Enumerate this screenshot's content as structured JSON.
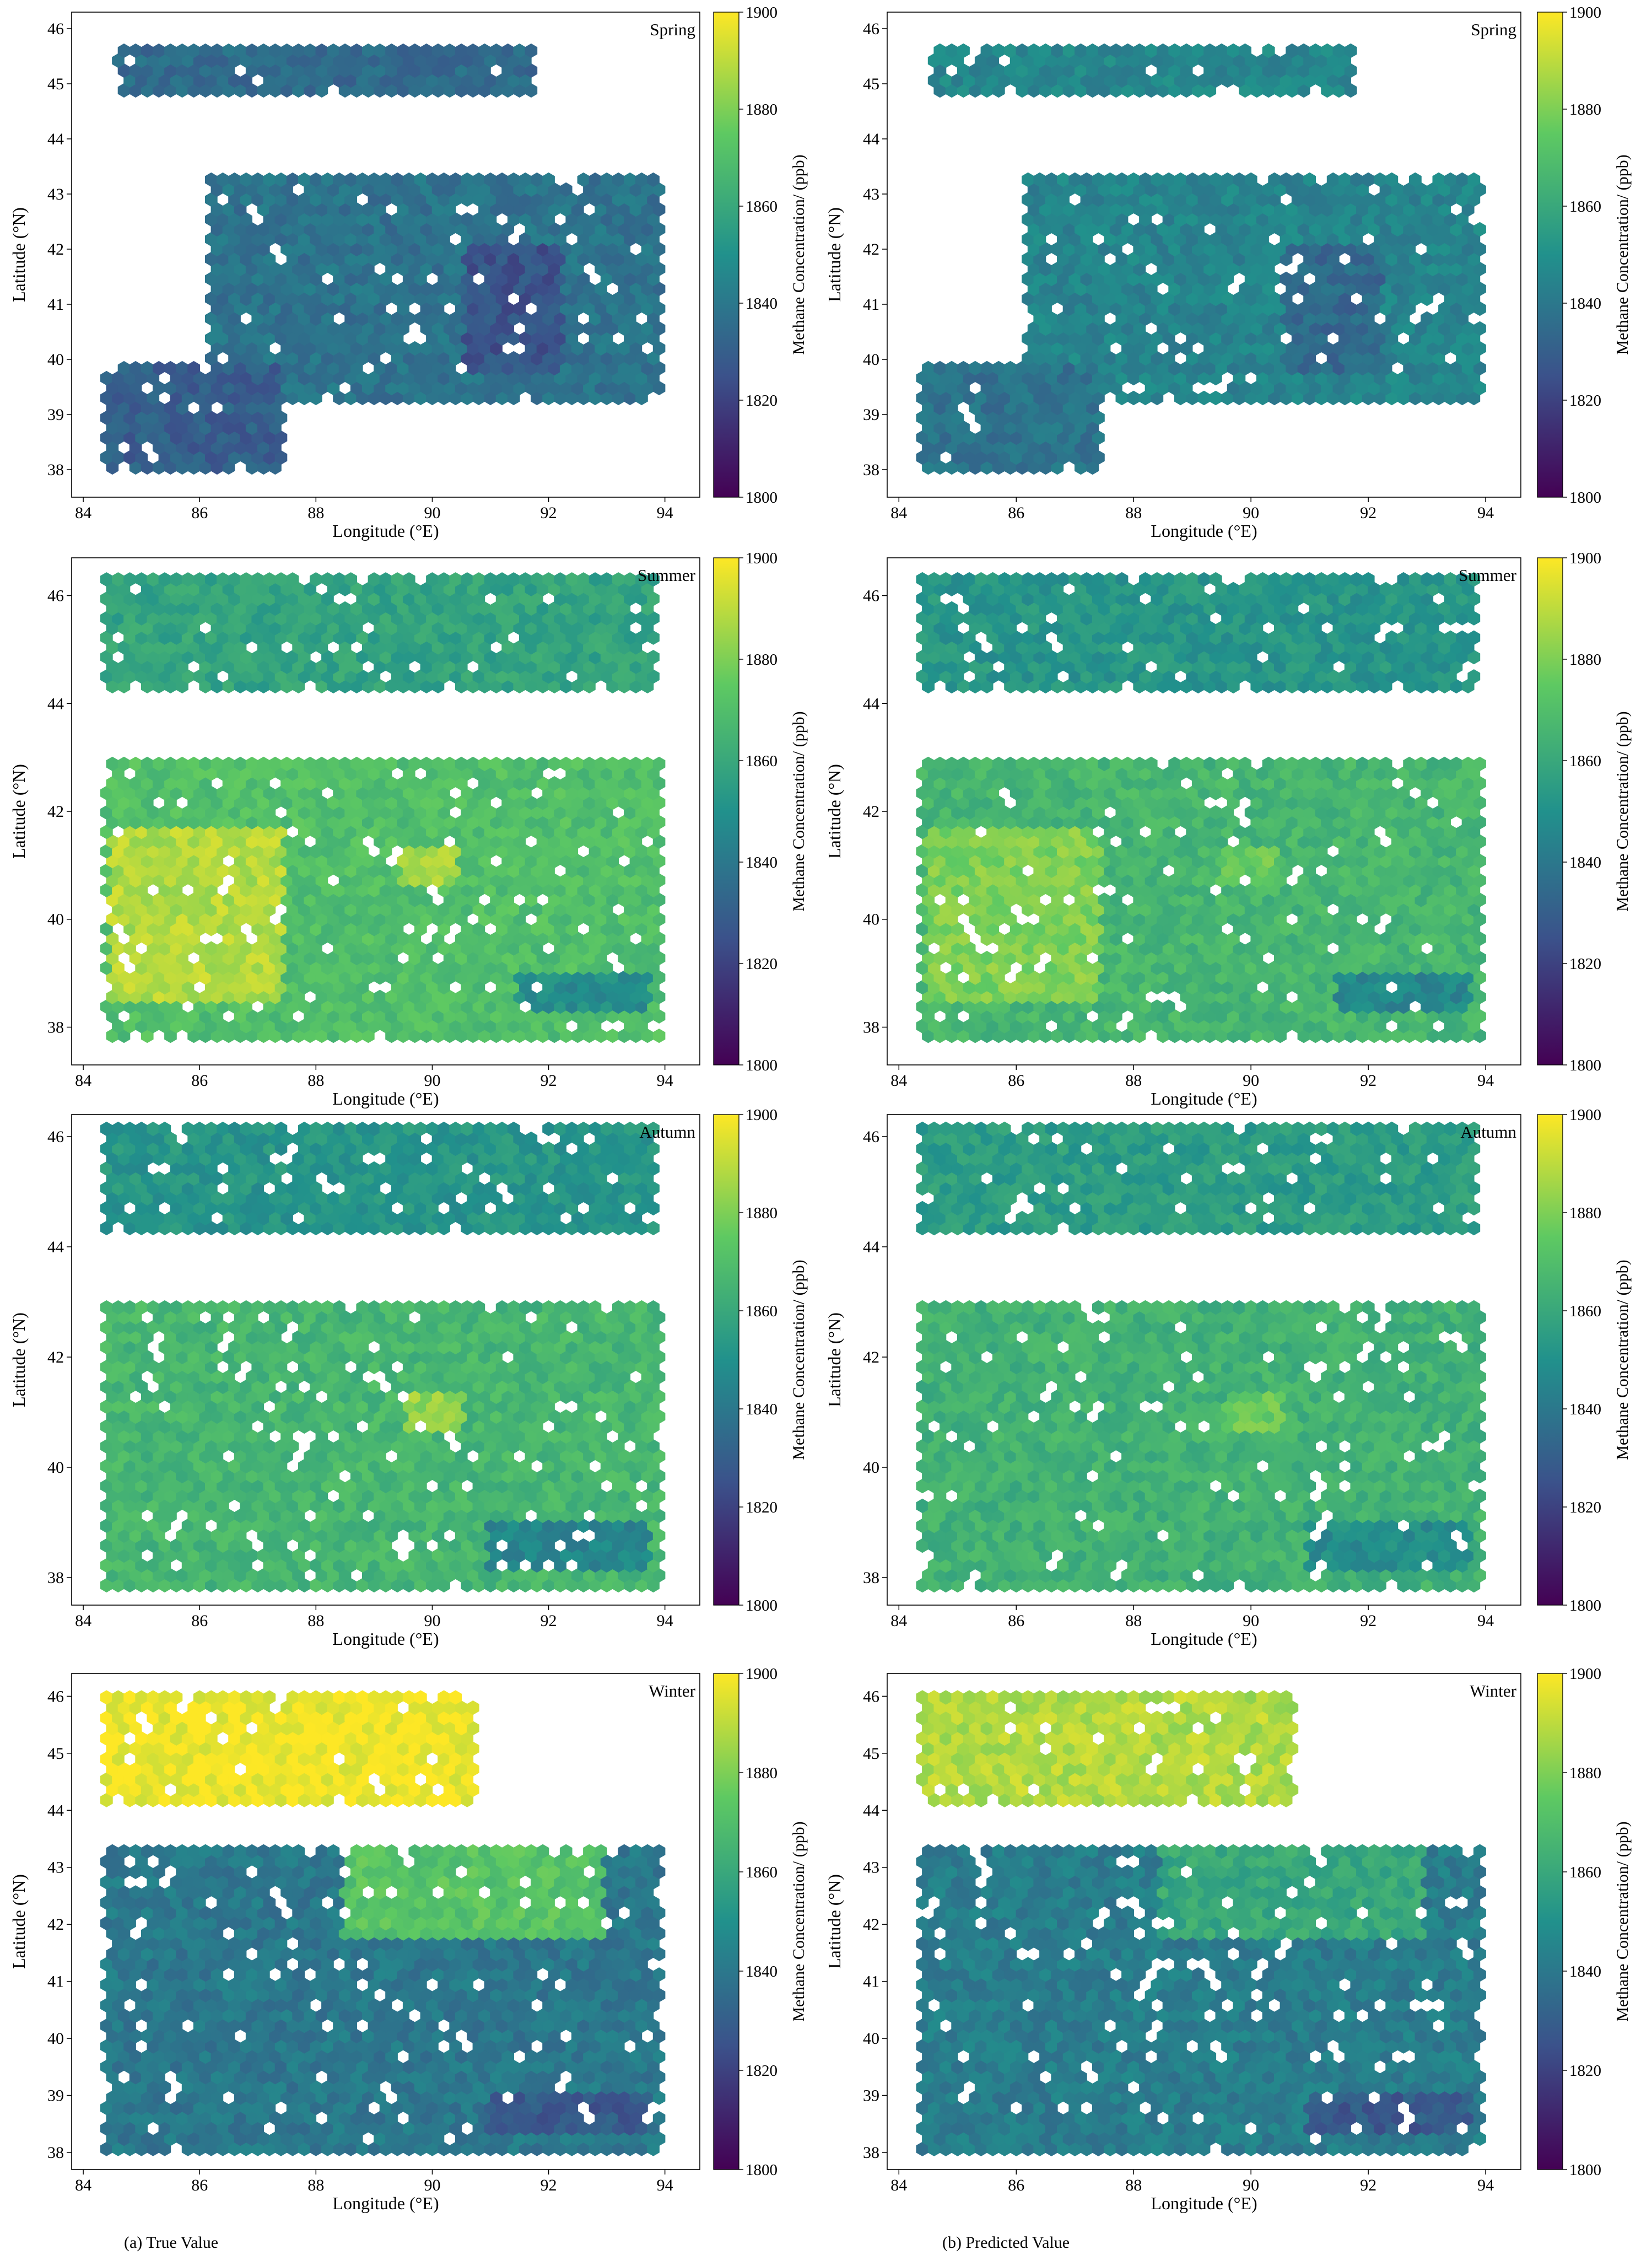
{
  "figure": {
    "caption_a": "(a)  True Value",
    "caption_b": "(b)  Predicted Value"
  },
  "colorbar": {
    "label": "Methane Concentration/  (ppb)",
    "range": [
      1800,
      1900
    ],
    "ticks": [
      1800,
      1820,
      1840,
      1860,
      1880,
      1900
    ],
    "colormap": "viridis",
    "colormap_stops": [
      "#440154",
      "#3b528b",
      "#21918c",
      "#5ec962",
      "#fde725"
    ]
  },
  "axes": {
    "xlabel": "Longitude  (°E)",
    "ylabel": "Latitude  (°N)",
    "xticks": [
      84,
      86,
      88,
      90,
      92,
      94
    ],
    "xlim": [
      83.8,
      94.6
    ]
  },
  "chart_data": [
    {
      "type": "heatmap",
      "season": "Spring",
      "column": "True Value",
      "ylim": [
        37.5,
        46.3
      ],
      "yticks": [
        38,
        39,
        40,
        41,
        42,
        43,
        44,
        45,
        46
      ],
      "regions": [
        {
          "lon": [
            84.6,
            91.8
          ],
          "lat": [
            44.7,
            45.7
          ],
          "value": 1835
        },
        {
          "lon": [
            86.2,
            94.0
          ],
          "lat": [
            39.3,
            43.4
          ],
          "value": 1838
        },
        {
          "lon": [
            84.4,
            87.5
          ],
          "lat": [
            37.9,
            40.0
          ],
          "value": 1830
        },
        {
          "lon": [
            90.6,
            92.3
          ],
          "lat": [
            39.8,
            42.0
          ],
          "value": 1826
        }
      ]
    },
    {
      "type": "heatmap",
      "season": "Spring",
      "column": "Predicted Value",
      "ylim": [
        37.5,
        46.3
      ],
      "yticks": [
        38,
        39,
        40,
        41,
        42,
        43,
        44,
        45,
        46
      ],
      "regions": [
        {
          "lon": [
            84.6,
            91.8
          ],
          "lat": [
            44.7,
            45.7
          ],
          "value": 1846
        },
        {
          "lon": [
            86.2,
            94.0
          ],
          "lat": [
            39.3,
            43.4
          ],
          "value": 1845
        },
        {
          "lon": [
            84.4,
            87.5
          ],
          "lat": [
            37.9,
            40.0
          ],
          "value": 1838
        },
        {
          "lon": [
            90.6,
            92.3
          ],
          "lat": [
            39.8,
            42.0
          ],
          "value": 1834
        }
      ]
    },
    {
      "type": "heatmap",
      "season": "Summer",
      "column": "True Value",
      "ylim": [
        37.3,
        46.7
      ],
      "yticks": [
        38,
        40,
        42,
        44,
        46
      ],
      "regions": [
        {
          "lon": [
            84.4,
            93.9
          ],
          "lat": [
            44.2,
            46.3
          ],
          "value": 1858
        },
        {
          "lon": [
            84.4,
            94.0
          ],
          "lat": [
            37.8,
            43.0
          ],
          "value": 1870
        },
        {
          "lon": [
            84.5,
            87.5
          ],
          "lat": [
            38.5,
            41.7
          ],
          "value": 1888
        },
        {
          "lon": [
            89.5,
            90.5
          ],
          "lat": [
            40.6,
            41.3
          ],
          "value": 1885
        },
        {
          "lon": [
            91.5,
            93.8
          ],
          "lat": [
            38.3,
            39.0
          ],
          "value": 1848
        }
      ]
    },
    {
      "type": "heatmap",
      "season": "Summer",
      "column": "Predicted Value",
      "ylim": [
        37.3,
        46.7
      ],
      "yticks": [
        38,
        40,
        42,
        44,
        46
      ],
      "regions": [
        {
          "lon": [
            84.4,
            93.9
          ],
          "lat": [
            44.2,
            46.3
          ],
          "value": 1852
        },
        {
          "lon": [
            84.4,
            94.0
          ],
          "lat": [
            37.8,
            43.0
          ],
          "value": 1866
        },
        {
          "lon": [
            84.5,
            87.5
          ],
          "lat": [
            38.5,
            41.7
          ],
          "value": 1880
        },
        {
          "lon": [
            89.5,
            90.5
          ],
          "lat": [
            40.6,
            41.3
          ],
          "value": 1876
        },
        {
          "lon": [
            91.5,
            93.8
          ],
          "lat": [
            38.3,
            39.0
          ],
          "value": 1846
        }
      ]
    },
    {
      "type": "heatmap",
      "season": "Autumn",
      "column": "True Value",
      "ylim": [
        37.5,
        46.4
      ],
      "yticks": [
        38,
        40,
        42,
        44,
        46
      ],
      "regions": [
        {
          "lon": [
            84.4,
            93.9
          ],
          "lat": [
            44.3,
            46.2
          ],
          "value": 1852
        },
        {
          "lon": [
            84.4,
            94.0
          ],
          "lat": [
            37.8,
            43.0
          ],
          "value": 1866
        },
        {
          "lon": [
            89.6,
            90.6
          ],
          "lat": [
            40.7,
            41.3
          ],
          "value": 1884
        },
        {
          "lon": [
            91.0,
            93.8
          ],
          "lat": [
            38.2,
            39.0
          ],
          "value": 1845
        }
      ]
    },
    {
      "type": "heatmap",
      "season": "Autumn",
      "column": "Predicted Value",
      "ylim": [
        37.5,
        46.4
      ],
      "yticks": [
        38,
        40,
        42,
        44,
        46
      ],
      "regions": [
        {
          "lon": [
            84.4,
            93.9
          ],
          "lat": [
            44.3,
            46.2
          ],
          "value": 1855
        },
        {
          "lon": [
            84.4,
            94.0
          ],
          "lat": [
            37.8,
            43.0
          ],
          "value": 1864
        },
        {
          "lon": [
            89.6,
            90.6
          ],
          "lat": [
            40.7,
            41.3
          ],
          "value": 1876
        },
        {
          "lon": [
            91.0,
            93.8
          ],
          "lat": [
            38.2,
            39.0
          ],
          "value": 1848
        }
      ]
    },
    {
      "type": "heatmap",
      "season": "Winter",
      "column": "True Value",
      "ylim": [
        37.7,
        46.4
      ],
      "yticks": [
        38,
        39,
        40,
        41,
        42,
        43,
        44,
        45,
        46
      ],
      "regions": [
        {
          "lon": [
            84.4,
            90.8
          ],
          "lat": [
            44.0,
            46.0
          ],
          "value": 1898
        },
        {
          "lon": [
            84.4,
            94.0
          ],
          "lat": [
            38.0,
            43.4
          ],
          "value": 1840
        },
        {
          "lon": [
            88.5,
            93.0
          ],
          "lat": [
            41.8,
            43.3
          ],
          "value": 1872
        },
        {
          "lon": [
            91.0,
            93.8
          ],
          "lat": [
            38.3,
            39.1
          ],
          "value": 1828
        }
      ]
    },
    {
      "type": "heatmap",
      "season": "Winter",
      "column": "Predicted Value",
      "ylim": [
        37.7,
        46.4
      ],
      "yticks": [
        38,
        39,
        40,
        41,
        42,
        43,
        44,
        45,
        46
      ],
      "regions": [
        {
          "lon": [
            84.4,
            90.8
          ],
          "lat": [
            44.0,
            46.0
          ],
          "value": 1888
        },
        {
          "lon": [
            84.4,
            94.0
          ],
          "lat": [
            38.0,
            43.4
          ],
          "value": 1842
        },
        {
          "lon": [
            88.5,
            93.0
          ],
          "lat": [
            41.8,
            43.3
          ],
          "value": 1860
        },
        {
          "lon": [
            91.0,
            93.8
          ],
          "lat": [
            38.3,
            39.1
          ],
          "value": 1828
        }
      ]
    }
  ]
}
